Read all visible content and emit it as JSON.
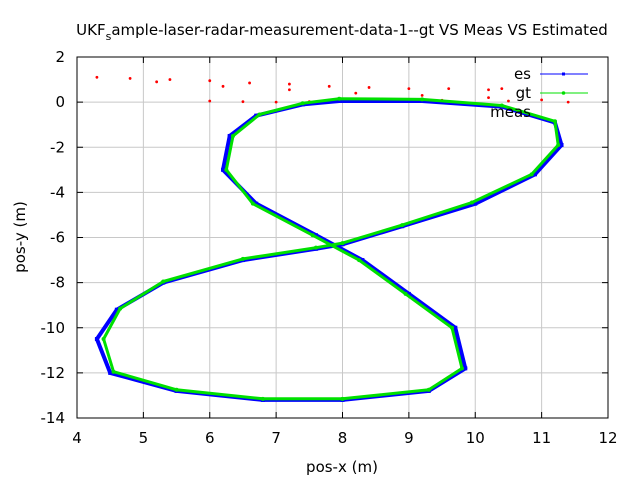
{
  "chart_data": {
    "type": "scatter",
    "title_parts": [
      "UKF",
      "s",
      "ample-laser-radar-measurement-data-1--gt VS Meas VS Estimated"
    ],
    "xlabel": "pos-x (m)",
    "ylabel": "pos-y (m)",
    "xlim": [
      4,
      12
    ],
    "ylim": [
      -14,
      2
    ],
    "xticks": [
      4,
      5,
      6,
      7,
      8,
      9,
      10,
      11,
      12
    ],
    "yticks": [
      2,
      0,
      -2,
      -4,
      -6,
      -8,
      -10,
      -12,
      -14
    ],
    "grid": true,
    "legend_position": "top-right",
    "series": [
      {
        "name": "es",
        "color": "#0000ff",
        "marker": "square",
        "points": [
          [
            7.95,
            0.05
          ],
          [
            9.2,
            0.05
          ],
          [
            10.4,
            -0.2
          ],
          [
            11.2,
            -0.9
          ],
          [
            11.3,
            -1.9
          ],
          [
            10.9,
            -3.2
          ],
          [
            10.0,
            -4.5
          ],
          [
            8.9,
            -5.5
          ],
          [
            8.0,
            -6.3
          ],
          [
            7.6,
            -6.5
          ],
          [
            6.5,
            -7.0
          ],
          [
            5.3,
            -8.0
          ],
          [
            4.6,
            -9.2
          ],
          [
            4.3,
            -10.5
          ],
          [
            4.5,
            -12.0
          ],
          [
            5.5,
            -12.8
          ],
          [
            6.8,
            -13.2
          ],
          [
            8.0,
            -13.2
          ],
          [
            9.3,
            -12.8
          ],
          [
            9.85,
            -11.8
          ],
          [
            9.7,
            -10.0
          ],
          [
            9.0,
            -8.5
          ],
          [
            8.3,
            -7.0
          ],
          [
            7.6,
            -5.9
          ],
          [
            6.7,
            -4.5
          ],
          [
            6.2,
            -3.0
          ],
          [
            6.3,
            -1.5
          ],
          [
            6.7,
            -0.6
          ],
          [
            7.4,
            -0.1
          ]
        ]
      },
      {
        "name": "gt",
        "color": "#00e000",
        "marker": "dot",
        "points": [
          [
            7.95,
            0.15
          ],
          [
            9.2,
            0.12
          ],
          [
            10.4,
            -0.15
          ],
          [
            11.2,
            -0.85
          ],
          [
            11.25,
            -1.9
          ],
          [
            10.85,
            -3.2
          ],
          [
            9.95,
            -4.45
          ],
          [
            8.9,
            -5.45
          ],
          [
            8.0,
            -6.25
          ],
          [
            7.6,
            -6.45
          ],
          [
            6.5,
            -6.95
          ],
          [
            5.3,
            -7.95
          ],
          [
            4.65,
            -9.15
          ],
          [
            4.4,
            -10.5
          ],
          [
            4.55,
            -11.95
          ],
          [
            5.5,
            -12.75
          ],
          [
            6.8,
            -13.15
          ],
          [
            8.0,
            -13.15
          ],
          [
            9.3,
            -12.75
          ],
          [
            9.8,
            -11.8
          ],
          [
            9.65,
            -10.0
          ],
          [
            8.95,
            -8.5
          ],
          [
            8.25,
            -7.0
          ],
          [
            7.55,
            -5.9
          ],
          [
            6.65,
            -4.5
          ],
          [
            6.25,
            -3.0
          ],
          [
            6.35,
            -1.5
          ],
          [
            6.75,
            -0.55
          ],
          [
            7.4,
            -0.05
          ]
        ]
      },
      {
        "name": "meas",
        "color": "#ff0000",
        "marker": "dot",
        "points": [
          [
            4.3,
            1.1
          ],
          [
            4.8,
            1.05
          ],
          [
            5.4,
            1.0
          ],
          [
            6.0,
            0.95
          ],
          [
            6.6,
            0.85
          ],
          [
            7.2,
            0.8
          ],
          [
            7.8,
            0.7
          ],
          [
            8.4,
            0.65
          ],
          [
            9.0,
            0.6
          ],
          [
            9.6,
            0.6
          ],
          [
            10.2,
            0.55
          ],
          [
            10.4,
            0.6
          ],
          [
            5.2,
            0.9
          ],
          [
            6.2,
            0.7
          ],
          [
            7.2,
            0.55
          ],
          [
            8.2,
            0.4
          ],
          [
            9.2,
            0.3
          ],
          [
            10.2,
            0.2
          ],
          [
            11.0,
            0.1
          ],
          [
            11.4,
            0.0
          ],
          [
            6.0,
            0.05
          ],
          [
            6.5,
            0.02
          ],
          [
            7.0,
            0.0
          ],
          [
            7.5,
            0.02
          ],
          [
            8.5,
            0.05
          ],
          [
            9.5,
            0.08
          ],
          [
            10.5,
            0.05
          ],
          [
            7.95,
            0.05
          ],
          [
            9.2,
            0.05
          ],
          [
            10.4,
            -0.2
          ],
          [
            11.2,
            -0.9
          ],
          [
            11.3,
            -1.9
          ],
          [
            10.9,
            -3.2
          ],
          [
            10.0,
            -4.5
          ],
          [
            8.9,
            -5.5
          ],
          [
            8.0,
            -6.3
          ],
          [
            6.5,
            -7.0
          ],
          [
            5.3,
            -8.0
          ],
          [
            4.6,
            -9.2
          ],
          [
            4.3,
            -10.5
          ],
          [
            4.5,
            -12.0
          ],
          [
            5.5,
            -12.8
          ],
          [
            6.8,
            -13.2
          ],
          [
            8.0,
            -13.2
          ],
          [
            9.3,
            -12.8
          ],
          [
            9.85,
            -11.8
          ],
          [
            9.7,
            -10.0
          ],
          [
            9.0,
            -8.5
          ],
          [
            8.3,
            -7.0
          ],
          [
            7.6,
            -5.9
          ],
          [
            6.7,
            -4.5
          ],
          [
            6.2,
            -3.0
          ],
          [
            6.3,
            -1.5
          ],
          [
            6.7,
            -0.6
          ],
          [
            7.4,
            -0.1
          ]
        ]
      }
    ]
  }
}
